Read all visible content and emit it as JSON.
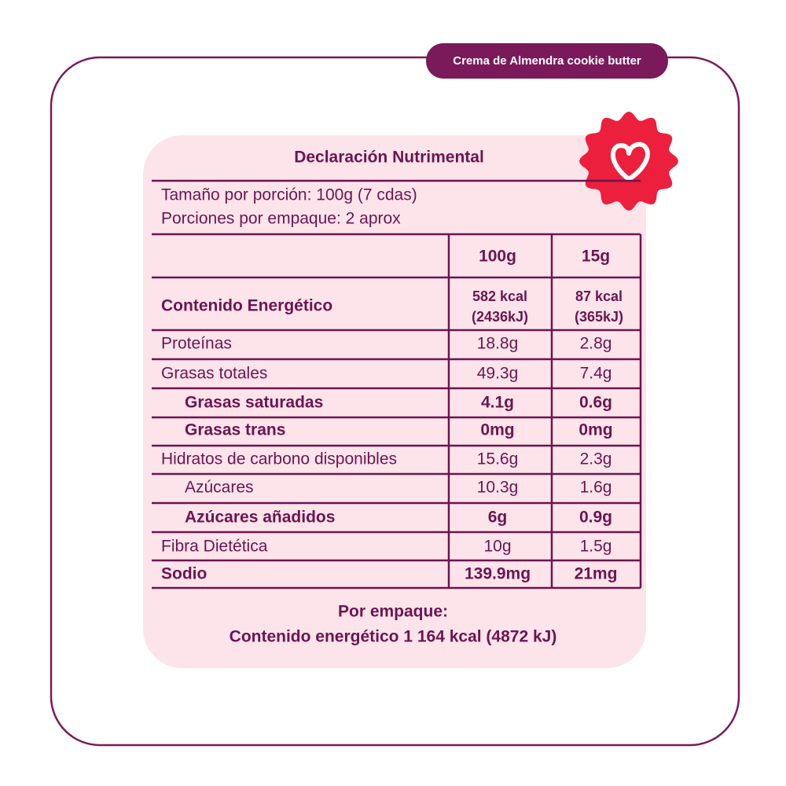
{
  "tag": "Crema de Almendra cookie butter",
  "title": "Declaración Nutrimental",
  "serving": [
    "Tamaño por porción: 100g (7 cdas)",
    "Porciones por empaque: 2 aprox"
  ],
  "table": {
    "header": [
      "100g",
      "15g"
    ],
    "energy": {
      "label": "Contenido Energético",
      "per100": [
        "582 kcal",
        "(2436kJ)"
      ],
      "per15": [
        "87 kcal",
        "(365kJ)"
      ]
    },
    "rows": [
      [
        "Proteínas",
        "18.8g",
        "2.8g"
      ],
      [
        "Grasas totales",
        "49.3g",
        "7.4g"
      ],
      [
        "Grasas saturadas",
        "4.1g",
        "0.6g"
      ],
      [
        "Grasas trans",
        "0mg",
        "0mg"
      ],
      [
        "Hidratos de carbono disponibles",
        "15.6g",
        "2.3g"
      ],
      [
        "Azúcares",
        "10.3g",
        "1.6g"
      ],
      [
        "Azúcares añadidos",
        "6g",
        "0.9g"
      ],
      [
        "Fibra Dietética",
        "10g",
        "1.5g"
      ],
      [
        "Sodio",
        "139.9mg",
        "21mg"
      ]
    ]
  },
  "footer": [
    "Por empaque:",
    "Contenido energético 1 164 kcal (4872 kJ)"
  ]
}
